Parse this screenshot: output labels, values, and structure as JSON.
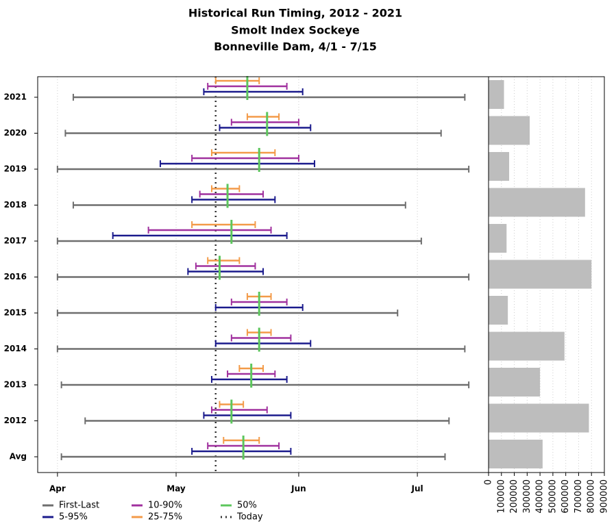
{
  "chart_data": [
    {
      "type": "interval",
      "title": "Historical Run Timing, 2012 - 2021",
      "subtitle": [
        "Smolt Index Sockeye",
        "Bonneville Dam, 4/1 - 7/15"
      ],
      "categories": [
        "Avg",
        "2012",
        "2013",
        "2014",
        "2015",
        "2016",
        "2017",
        "2018",
        "2019",
        "2020",
        "2021"
      ],
      "xlim": [
        -5,
        109
      ],
      "xticks": [
        {
          "value": 0,
          "label": "Apr"
        },
        {
          "value": 30,
          "label": "May"
        },
        {
          "value": 61,
          "label": "Jun"
        },
        {
          "value": 91,
          "label": "Jul"
        }
      ],
      "grid": true,
      "series": [
        {
          "name": "First-Last",
          "color": "#6e6e6e",
          "start": [
            1,
            7,
            1,
            0,
            0,
            0,
            0,
            4,
            0,
            2,
            4
          ],
          "end": [
            98,
            99,
            104,
            103,
            86,
            104,
            92,
            88,
            104,
            97,
            103
          ]
        },
        {
          "name": "5-95%",
          "color": "#1a1a8c",
          "start": [
            34,
            37,
            39,
            40,
            40,
            33,
            14,
            34,
            26,
            41,
            37
          ],
          "end": [
            59,
            59,
            58,
            64,
            62,
            52,
            58,
            55,
            65,
            64,
            62
          ]
        },
        {
          "name": "10-90%",
          "color": "#a0309e",
          "start": [
            38,
            39,
            43,
            44,
            44,
            35,
            23,
            36,
            34,
            44,
            38
          ],
          "end": [
            56,
            53,
            55,
            59,
            58,
            50,
            54,
            52,
            61,
            61,
            58
          ]
        },
        {
          "name": "25-75%",
          "color": "#f39a48",
          "start": [
            42,
            41,
            46,
            48,
            48,
            38,
            34,
            39,
            39,
            48,
            40
          ],
          "end": [
            51,
            47,
            52,
            54,
            54,
            46,
            50,
            46,
            55,
            56,
            51
          ]
        },
        {
          "name": "50%",
          "color": "#5cc65c",
          "values": [
            47,
            44,
            49,
            51,
            51,
            41,
            44,
            43,
            51,
            53,
            48
          ]
        }
      ],
      "reference_line": {
        "name": "Today",
        "value": 40,
        "color": "#333333"
      }
    },
    {
      "type": "hbar",
      "values": [
        420000,
        780000,
        400000,
        590000,
        150000,
        800000,
        140000,
        750000,
        160000,
        320000,
        120000
      ],
      "color": "#bdbdbd",
      "xlim": [
        0,
        900000
      ],
      "xticks": [
        0,
        100000,
        200000,
        300000,
        400000,
        500000,
        600000,
        700000,
        800000,
        900000
      ],
      "grid": true
    }
  ]
}
